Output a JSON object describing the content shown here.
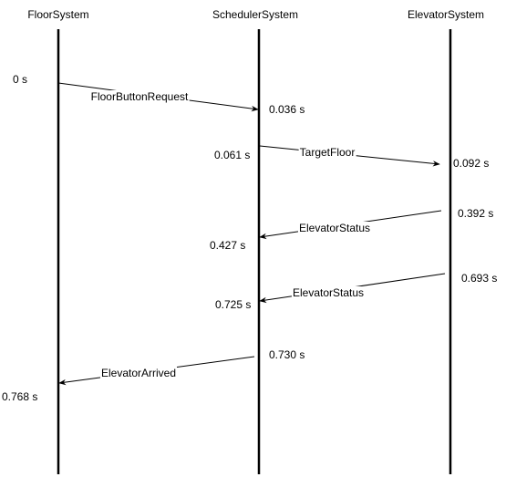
{
  "lifelines": [
    {
      "name": "FloorSystem"
    },
    {
      "name": "SchedulerSystem"
    },
    {
      "name": "ElevatorSystem"
    }
  ],
  "messages": [
    {
      "label": "FloorButtonRequest",
      "from": "FloorSystem",
      "to": "SchedulerSystem",
      "send_time": "0 s",
      "recv_time": "0.036 s"
    },
    {
      "label": "TargetFloor",
      "from": "SchedulerSystem",
      "to": "ElevatorSystem",
      "send_time": "0.061 s",
      "recv_time": "0.092 s"
    },
    {
      "label": "ElevatorStatus",
      "from": "ElevatorSystem",
      "to": "SchedulerSystem",
      "send_time": "0.392 s",
      "recv_time": "0.427 s"
    },
    {
      "label": "ElevatorStatus",
      "from": "ElevatorSystem",
      "to": "SchedulerSystem",
      "send_time": "0.693 s",
      "recv_time": "0.725 s"
    },
    {
      "label": "ElevatorArrived",
      "from": "SchedulerSystem",
      "to": "FloorSystem",
      "send_time": "0.730 s",
      "recv_time": "0.768 s"
    }
  ]
}
